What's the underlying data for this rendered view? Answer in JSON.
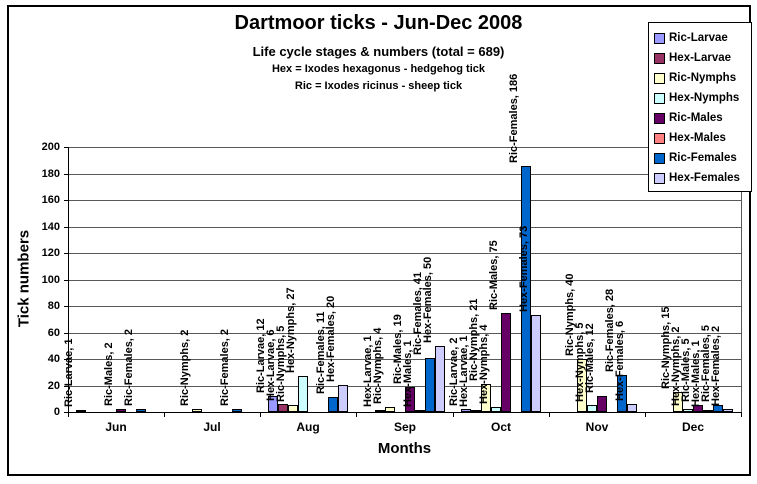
{
  "chart_data": {
    "type": "bar",
    "title": "Dartmoor ticks - Jun-Dec 2008",
    "subtitle": "Life cycle stages & numbers (total = 689)",
    "notes": [
      "Hex = Ixodes hexagonus - hedgehog tick",
      "Ric = Ixodes ricinus - sheep tick"
    ],
    "xlabel": "Months",
    "ylabel": "Tick numbers",
    "ylim": [
      0,
      200
    ],
    "yticks": [
      0,
      20,
      40,
      60,
      80,
      100,
      120,
      140,
      160,
      180,
      200
    ],
    "grid": true,
    "legend_position": "top-right",
    "total": 689,
    "categories": [
      "Jun",
      "Jul",
      "Aug",
      "Sep",
      "Oct",
      "Nov",
      "Dec"
    ],
    "series": [
      {
        "name": "Ric-Larvae",
        "color": "#9999FF",
        "values": [
          1,
          null,
          12,
          null,
          2,
          null,
          null
        ]
      },
      {
        "name": "Hex-Larvae",
        "color": "#993366",
        "values": [
          null,
          null,
          6,
          1,
          1,
          null,
          null
        ]
      },
      {
        "name": "Ric-Nymphs",
        "color": "#FFFFCC",
        "values": [
          null,
          2,
          5,
          4,
          21,
          40,
          15
        ]
      },
      {
        "name": "Hex-Nymphs",
        "color": "#CCFFFF",
        "values": [
          null,
          null,
          27,
          null,
          4,
          5,
          2
        ]
      },
      {
        "name": "Ric-Males",
        "color": "#660066",
        "values": [
          2,
          null,
          null,
          19,
          75,
          12,
          5
        ]
      },
      {
        "name": "Hex-Males",
        "color": "#FF8080",
        "values": [
          null,
          null,
          null,
          1,
          null,
          null,
          1
        ]
      },
      {
        "name": "Ric-Females",
        "color": "#0066CC",
        "values": [
          2,
          2,
          11,
          41,
          186,
          28,
          5
        ]
      },
      {
        "name": "Hex-Females",
        "color": "#CCCCFF",
        "values": [
          null,
          null,
          20,
          50,
          73,
          6,
          2
        ]
      }
    ]
  }
}
